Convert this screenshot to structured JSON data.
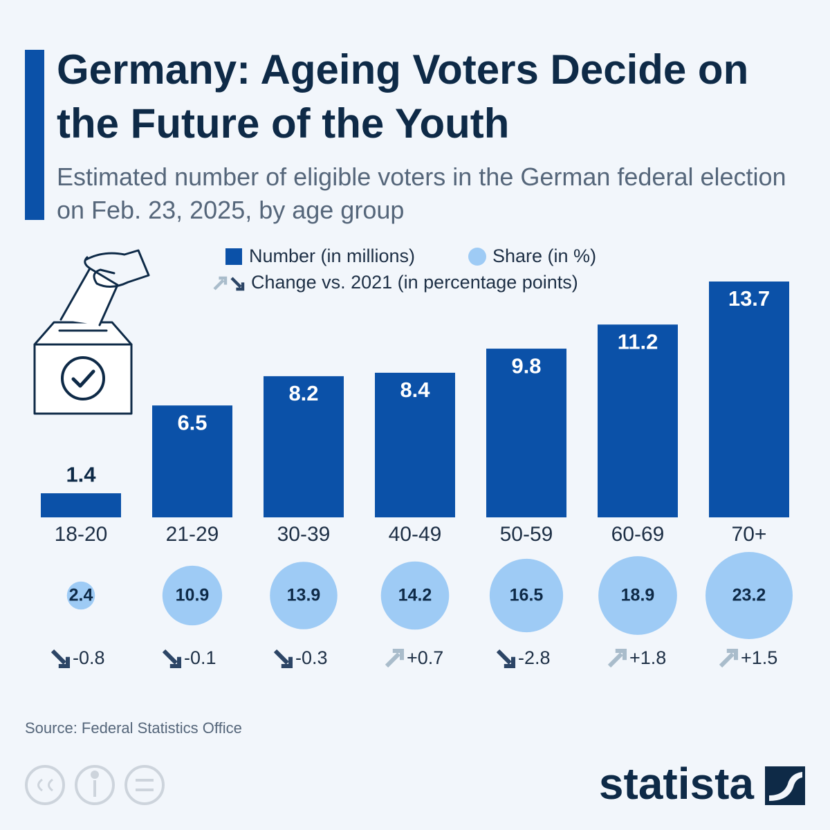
{
  "chart_data": {
    "type": "bar",
    "title": "Germany: Ageing Voters Decide on the Future of the Youth",
    "subtitle": "Estimated number of eligible voters in the German federal election on Feb. 23, 2025, by age group",
    "categories": [
      "18-20",
      "21-29",
      "30-39",
      "40-49",
      "50-59",
      "60-69",
      "70+"
    ],
    "series": [
      {
        "name": "Number (in millions)",
        "color": "#0b51a8",
        "values": [
          1.4,
          6.5,
          8.2,
          8.4,
          9.8,
          11.2,
          13.7
        ]
      },
      {
        "name": "Share (in %)",
        "color": "#9ecbf5",
        "values": [
          2.4,
          10.9,
          13.9,
          14.2,
          16.5,
          18.9,
          23.2
        ]
      },
      {
        "name": "Change vs. 2021 (in percentage points)",
        "color": "#2c4566",
        "values": [
          -0.8,
          -0.1,
          -0.3,
          0.7,
          -2.8,
          1.8,
          1.5
        ],
        "value_labels": [
          "-0.8",
          "-0.1",
          "-0.3",
          "+0.7",
          "-2.8",
          "+1.8",
          "+1.5"
        ]
      }
    ],
    "source": "Source: Federal Statistics Office",
    "brand": "statista"
  }
}
